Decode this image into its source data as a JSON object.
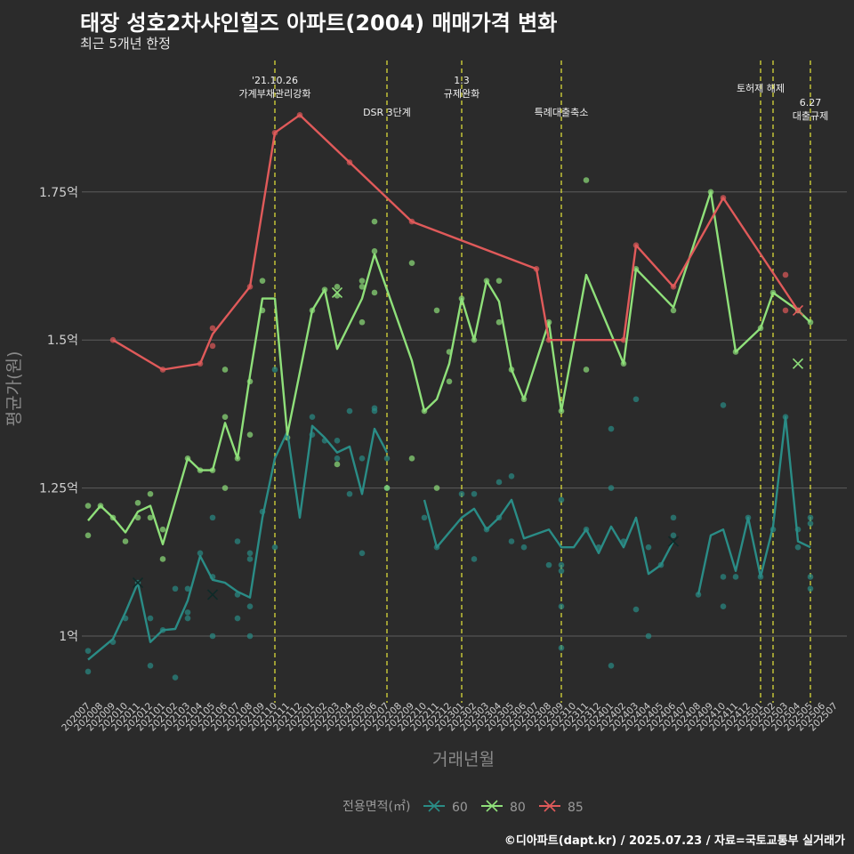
{
  "title": "태장 성호2차샤인힐즈 아파트(2004) 매매가격 변화",
  "subtitle": "최근 5개년 한정",
  "caption": "©디아파트(dapt.kr) / 2025.07.23 / 자료=국토교통부 실거래가",
  "chart_data": {
    "type": "line",
    "xlabel": "거래년월",
    "ylabel": "평균가(원)",
    "ylim": [
      0.89,
      1.99
    ],
    "y_ticks": [
      {
        "value": 1.0,
        "label": "1억"
      },
      {
        "value": 1.25,
        "label": "1.25억"
      },
      {
        "value": 1.5,
        "label": "1.5억"
      },
      {
        "value": 1.75,
        "label": "1.75억"
      }
    ],
    "x_categories": [
      "202007",
      "202008",
      "202009",
      "202010",
      "202011",
      "202012",
      "202101",
      "202102",
      "202103",
      "202104",
      "202105",
      "202106",
      "202107",
      "202108",
      "202109",
      "202110",
      "202111",
      "202112",
      "202201",
      "202202",
      "202203",
      "202204",
      "202205",
      "202206",
      "202207",
      "202208",
      "202209",
      "202210",
      "202211",
      "202212",
      "202301",
      "202302",
      "202303",
      "202304",
      "202305",
      "202306",
      "202307",
      "202308",
      "202309",
      "202310",
      "202311",
      "202312",
      "202401",
      "202402",
      "202403",
      "202404",
      "202405",
      "202406",
      "202407",
      "202408",
      "202409",
      "202410",
      "202411",
      "202412",
      "202501",
      "202502",
      "202503",
      "202504",
      "202505",
      "202506",
      "202507"
    ],
    "legend": {
      "title": "전용면적(㎡)",
      "position": "bottom",
      "entries": [
        {
          "label": "60",
          "color": "#2a8c86"
        },
        {
          "label": "80",
          "color": "#8fe07a"
        },
        {
          "label": "85",
          "color": "#e05a5a"
        }
      ]
    },
    "series": [
      {
        "name": "60",
        "color": "#2a8c86",
        "points": [
          [
            0,
            0.96
          ],
          [
            2,
            0.995
          ],
          [
            3,
            1.04
          ],
          [
            4,
            1.09
          ],
          [
            5,
            0.99
          ],
          [
            6,
            1.01
          ],
          [
            7,
            1.012
          ],
          [
            8,
            1.06
          ],
          [
            9,
            1.135
          ],
          [
            10,
            1.095
          ],
          [
            11,
            1.09
          ],
          [
            12,
            1.075
          ],
          [
            13,
            1.065
          ],
          [
            14,
            1.2
          ],
          [
            15,
            1.3
          ],
          [
            16,
            1.345
          ],
          [
            17,
            1.2
          ],
          [
            18,
            1.355
          ],
          [
            19,
            1.335
          ],
          [
            20,
            1.31
          ],
          [
            21,
            1.32
          ],
          [
            22,
            1.24
          ],
          [
            23,
            1.35
          ],
          [
            24,
            1.31
          ],
          [
            null,
            null
          ],
          [
            27,
            1.23
          ],
          [
            28,
            1.15
          ],
          [
            30,
            1.2
          ],
          [
            31,
            1.215
          ],
          [
            32,
            1.18
          ],
          [
            33,
            1.2
          ],
          [
            34,
            1.23
          ],
          [
            35,
            1.165
          ],
          [
            37,
            1.18
          ],
          [
            38,
            1.15
          ],
          [
            39,
            1.15
          ],
          [
            40,
            1.18
          ],
          [
            41,
            1.14
          ],
          [
            42,
            1.185
          ],
          [
            43,
            1.15
          ],
          [
            44,
            1.2
          ],
          [
            45,
            1.105
          ],
          [
            46,
            1.12
          ],
          [
            47,
            1.16
          ],
          [
            null,
            null
          ],
          [
            49,
            1.07
          ],
          [
            50,
            1.17
          ],
          [
            51,
            1.18
          ],
          [
            52,
            1.11
          ],
          [
            53,
            1.2
          ],
          [
            54,
            1.1
          ],
          [
            55,
            1.185
          ],
          [
            56,
            1.37
          ],
          [
            57,
            1.16
          ],
          [
            58,
            1.15
          ]
        ]
      },
      {
        "name": "80",
        "color": "#8fe07a",
        "points": [
          [
            0,
            1.195
          ],
          [
            1,
            1.22
          ],
          [
            2,
            1.2
          ],
          [
            3,
            1.175
          ],
          [
            4,
            1.21
          ],
          [
            5,
            1.22
          ],
          [
            6,
            1.155
          ],
          [
            8,
            1.3
          ],
          [
            9,
            1.28
          ],
          [
            10,
            1.28
          ],
          [
            11,
            1.36
          ],
          [
            12,
            1.3
          ],
          [
            13,
            1.44
          ],
          [
            14,
            1.57
          ],
          [
            15,
            1.57
          ],
          [
            16,
            1.34
          ],
          [
            18,
            1.55
          ],
          [
            19,
            1.585
          ],
          [
            20,
            1.485
          ],
          [
            22,
            1.57
          ],
          [
            23,
            1.645
          ],
          [
            26,
            1.465
          ],
          [
            27,
            1.38
          ],
          [
            28,
            1.4
          ],
          [
            29,
            1.46
          ],
          [
            30,
            1.57
          ],
          [
            31,
            1.5
          ],
          [
            32,
            1.6
          ],
          [
            33,
            1.565
          ],
          [
            34,
            1.45
          ],
          [
            35,
            1.4
          ],
          [
            37,
            1.53
          ],
          [
            38,
            1.38
          ],
          [
            40,
            1.61
          ],
          [
            43,
            1.46
          ],
          [
            44,
            1.62
          ],
          [
            47,
            1.555
          ],
          [
            50,
            1.75
          ],
          [
            52,
            1.48
          ],
          [
            54,
            1.52
          ],
          [
            55,
            1.58
          ],
          [
            57,
            1.55
          ],
          [
            58,
            1.53
          ]
        ]
      },
      {
        "name": "85",
        "color": "#e05a5a",
        "points": [
          [
            2,
            1.5
          ],
          [
            6,
            1.45
          ],
          [
            9,
            1.46
          ],
          [
            10,
            1.51
          ],
          [
            13,
            1.59
          ],
          [
            15,
            1.85
          ],
          [
            17,
            1.88
          ],
          [
            21,
            1.8
          ],
          [
            26,
            1.7
          ],
          [
            36,
            1.62
          ],
          [
            37,
            1.5
          ],
          [
            43,
            1.5
          ],
          [
            44,
            1.66
          ],
          [
            47,
            1.59
          ],
          [
            51,
            1.74
          ],
          [
            57,
            1.55
          ]
        ]
      }
    ],
    "scatter": [
      {
        "series": "60",
        "points": [
          [
            0,
            0.975
          ],
          [
            0,
            0.94
          ],
          [
            2,
            0.99
          ],
          [
            3,
            1.03
          ],
          [
            4,
            1.09
          ],
          [
            5,
            0.95
          ],
          [
            5,
            1.03
          ],
          [
            6,
            1.01
          ],
          [
            7,
            0.93
          ],
          [
            7,
            1.08
          ],
          [
            8,
            1.08
          ],
          [
            8,
            1.03
          ],
          [
            8,
            1.04
          ],
          [
            9,
            1.14
          ],
          [
            10,
            1.0
          ],
          [
            10,
            1.2
          ],
          [
            10,
            1.1
          ],
          [
            12,
            1.16
          ],
          [
            12,
            1.03
          ],
          [
            12,
            1.07
          ],
          [
            13,
            1.0
          ],
          [
            13,
            1.13
          ],
          [
            13,
            1.14
          ],
          [
            13,
            1.05
          ],
          [
            14,
            1.21
          ],
          [
            15,
            1.15
          ],
          [
            15,
            1.45
          ],
          [
            18,
            1.37
          ],
          [
            18,
            1.34
          ],
          [
            19,
            1.33
          ],
          [
            20,
            1.33
          ],
          [
            20,
            1.3
          ],
          [
            21,
            1.24
          ],
          [
            21,
            1.38
          ],
          [
            22,
            1.14
          ],
          [
            22,
            1.3
          ],
          [
            23,
            1.38
          ],
          [
            23,
            1.385
          ],
          [
            24,
            1.25
          ],
          [
            24,
            1.3
          ],
          [
            27,
            1.2
          ],
          [
            28,
            1.15
          ],
          [
            30,
            1.24
          ],
          [
            31,
            1.24
          ],
          [
            31,
            1.13
          ],
          [
            32,
            1.18
          ],
          [
            33,
            1.2
          ],
          [
            33,
            1.26
          ],
          [
            34,
            1.27
          ],
          [
            34,
            1.16
          ],
          [
            35,
            1.15
          ],
          [
            37,
            1.12
          ],
          [
            38,
            1.12
          ],
          [
            38,
            1.23
          ],
          [
            38,
            1.05
          ],
          [
            38,
            0.98
          ],
          [
            38,
            1.11
          ],
          [
            40,
            1.18
          ],
          [
            41,
            1.15
          ],
          [
            42,
            1.25
          ],
          [
            42,
            1.35
          ],
          [
            42,
            0.95
          ],
          [
            43,
            1.16
          ],
          [
            44,
            1.4
          ],
          [
            44,
            1.045
          ],
          [
            45,
            1.15
          ],
          [
            45,
            1.0
          ],
          [
            46,
            1.12
          ],
          [
            47,
            1.2
          ],
          [
            47,
            1.17
          ],
          [
            49,
            1.07
          ],
          [
            51,
            1.39
          ],
          [
            51,
            1.05
          ],
          [
            51,
            1.1
          ],
          [
            52,
            1.1
          ],
          [
            53,
            1.2
          ],
          [
            54,
            1.1
          ],
          [
            55,
            1.18
          ],
          [
            56,
            1.37
          ],
          [
            57,
            1.18
          ],
          [
            57,
            1.15
          ],
          [
            58,
            1.2
          ],
          [
            58,
            1.19
          ],
          [
            58,
            1.1
          ],
          [
            58,
            1.08
          ]
        ]
      },
      {
        "series": "80",
        "points": [
          [
            0,
            1.17
          ],
          [
            0,
            1.22
          ],
          [
            1,
            1.22
          ],
          [
            2,
            1.2
          ],
          [
            3,
            1.16
          ],
          [
            4,
            1.225
          ],
          [
            4,
            1.2
          ],
          [
            5,
            1.24
          ],
          [
            5,
            1.2
          ],
          [
            6,
            1.13
          ],
          [
            6,
            1.18
          ],
          [
            8,
            1.3
          ],
          [
            9,
            1.28
          ],
          [
            10,
            1.28
          ],
          [
            11,
            1.37
          ],
          [
            11,
            1.45
          ],
          [
            11,
            1.25
          ],
          [
            12,
            1.3
          ],
          [
            13,
            1.43
          ],
          [
            13,
            1.34
          ],
          [
            14,
            1.6
          ],
          [
            14,
            1.55
          ],
          [
            16,
            1.335
          ],
          [
            18,
            1.55
          ],
          [
            19,
            1.585
          ],
          [
            20,
            1.59
          ],
          [
            20,
            1.575
          ],
          [
            20,
            1.29
          ],
          [
            22,
            1.6
          ],
          [
            22,
            1.59
          ],
          [
            22,
            1.53
          ],
          [
            23,
            1.65
          ],
          [
            23,
            1.58
          ],
          [
            23,
            1.7
          ],
          [
            24,
            1.25
          ],
          [
            26,
            1.63
          ],
          [
            26,
            1.3
          ],
          [
            27,
            1.38
          ],
          [
            28,
            1.55
          ],
          [
            28,
            1.25
          ],
          [
            29,
            1.48
          ],
          [
            29,
            1.43
          ],
          [
            30,
            1.57
          ],
          [
            31,
            1.5
          ],
          [
            32,
            1.6
          ],
          [
            33,
            1.6
          ],
          [
            33,
            1.53
          ],
          [
            34,
            1.45
          ],
          [
            35,
            1.4
          ],
          [
            37,
            1.53
          ],
          [
            38,
            1.38
          ],
          [
            40,
            1.77
          ],
          [
            40,
            1.45
          ],
          [
            43,
            1.46
          ],
          [
            44,
            1.62
          ],
          [
            47,
            1.55
          ],
          [
            50,
            1.75
          ],
          [
            52,
            1.48
          ],
          [
            54,
            1.52
          ],
          [
            55,
            1.58
          ],
          [
            57,
            1.55
          ],
          [
            58,
            1.53
          ]
        ]
      },
      {
        "series": "85",
        "points": [
          [
            2,
            1.5
          ],
          [
            6,
            1.45
          ],
          [
            9,
            1.46
          ],
          [
            10,
            1.52
          ],
          [
            10,
            1.49
          ],
          [
            13,
            1.59
          ],
          [
            15,
            1.85
          ],
          [
            17,
            1.88
          ],
          [
            21,
            1.8
          ],
          [
            26,
            1.7
          ],
          [
            36,
            1.62
          ],
          [
            37,
            1.5
          ],
          [
            43,
            1.5
          ],
          [
            44,
            1.66
          ],
          [
            47,
            1.59
          ],
          [
            51,
            1.74
          ],
          [
            56,
            1.61
          ],
          [
            56,
            1.55
          ],
          [
            57,
            1.55
          ]
        ]
      }
    ],
    "cross_markers": [
      {
        "series": "60",
        "x": 4,
        "y": 1.09
      },
      {
        "series": "60",
        "x": 10,
        "y": 1.07
      },
      {
        "series": "60",
        "x": 47,
        "y": 1.16
      },
      {
        "series": "80",
        "x": 20,
        "y": 1.58
      },
      {
        "series": "80",
        "x": 57,
        "y": 1.46
      },
      {
        "series": "85",
        "x": 57,
        "y": 1.55
      }
    ],
    "events": [
      {
        "x": 15,
        "lines": [
          "'21.10.26",
          "가계부채관리강화"
        ]
      },
      {
        "x": 24,
        "lines": [
          "DSR 3단계"
        ]
      },
      {
        "x": 30,
        "lines": [
          "1.3",
          "규제완화"
        ]
      },
      {
        "x": 38,
        "lines": [
          "특례대출축소"
        ]
      },
      {
        "x": 54,
        "lines": [
          "토허제 해제"
        ]
      },
      {
        "x": 55,
        "lines": []
      },
      {
        "x": 58,
        "lines": [
          "6.27",
          "대출규제"
        ]
      }
    ]
  }
}
